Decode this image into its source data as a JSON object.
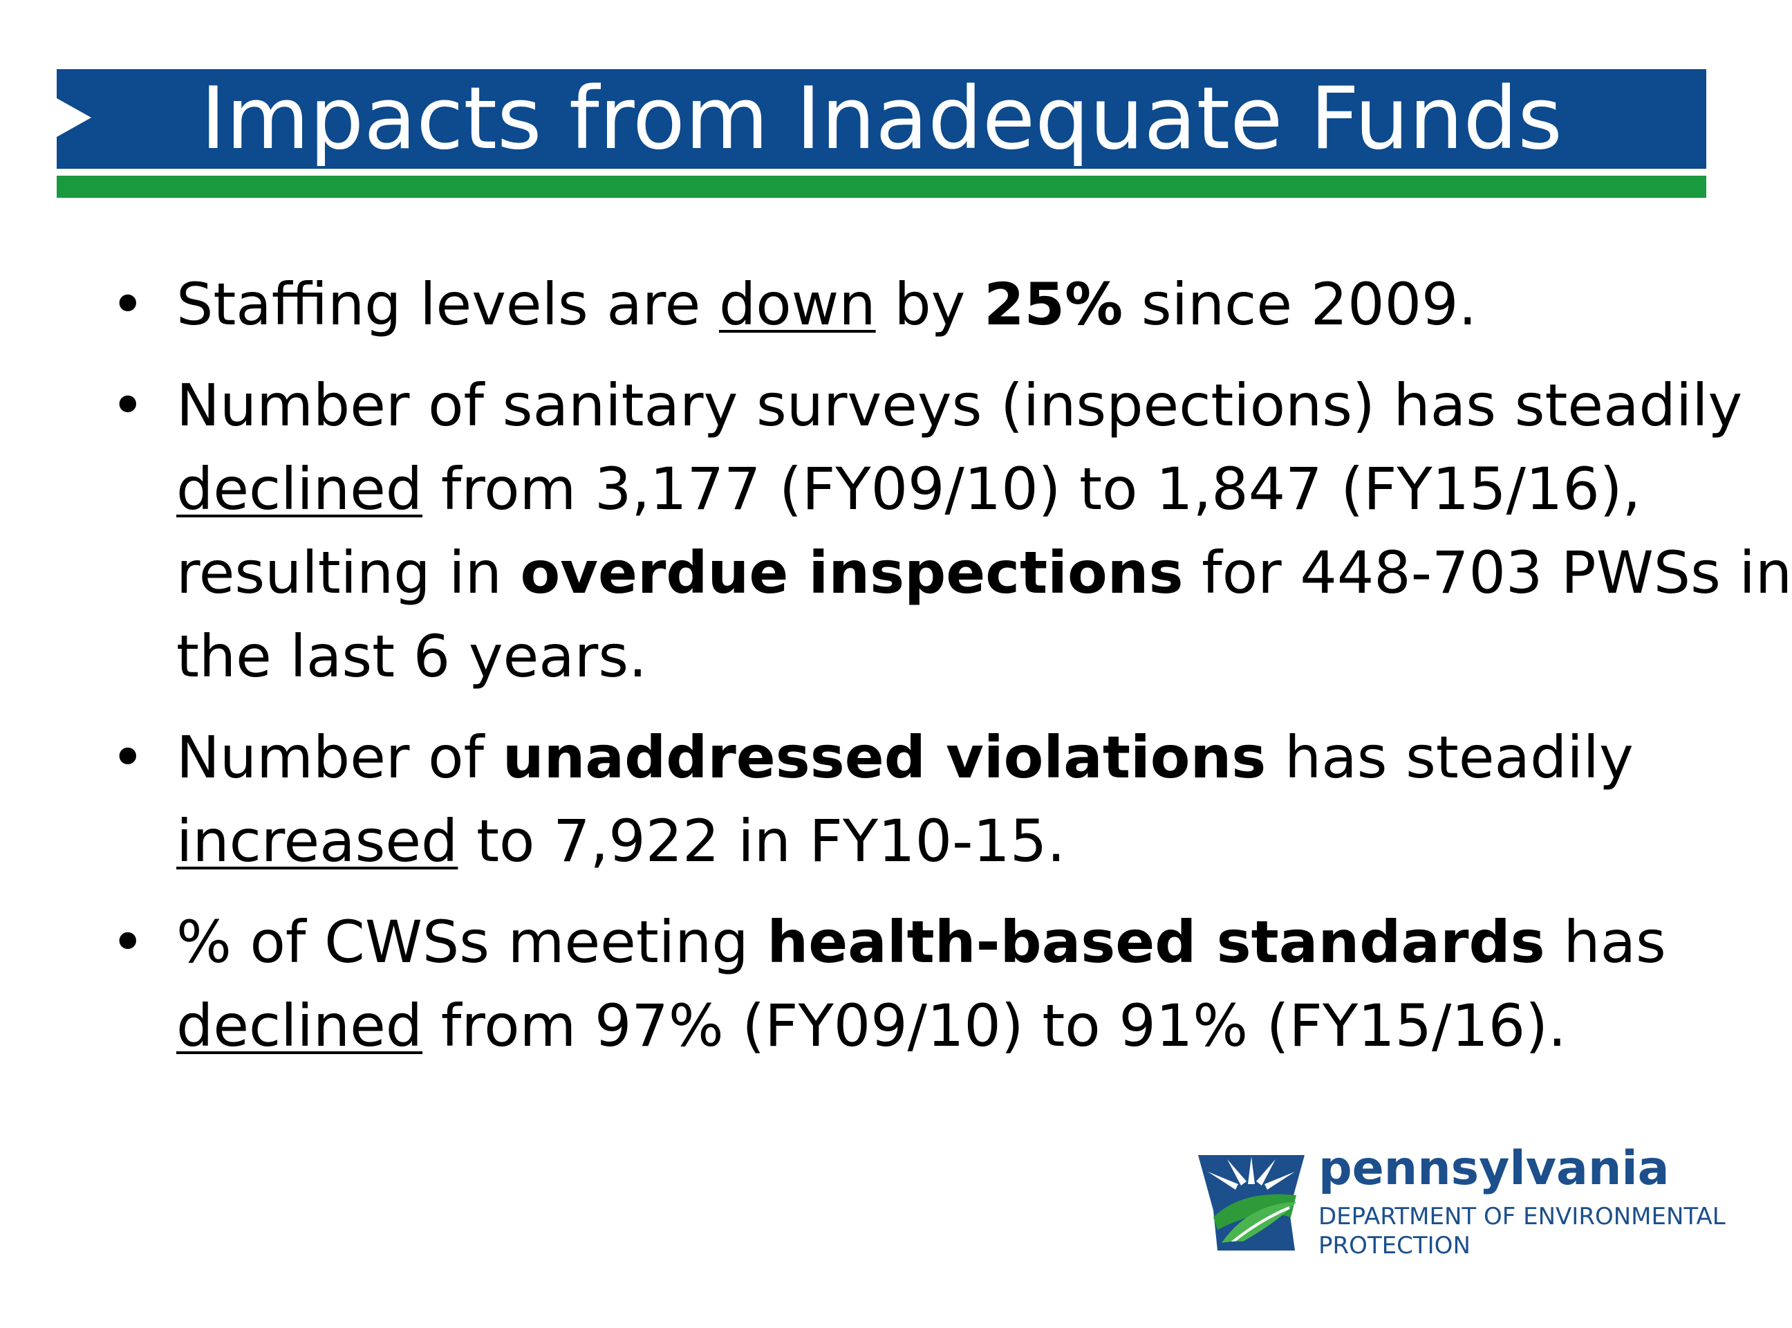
{
  "slide": {
    "title": "Impacts from Inadequate Funds",
    "bullets": [
      {
        "lines": [
          [
            {
              "text": "Staffing levels are ",
              "style": "normal"
            },
            {
              "text": "down",
              "style": "underline"
            },
            {
              "text": " by ",
              "style": "normal"
            },
            {
              "text": "25%",
              "style": "bold"
            },
            {
              "text": " since 2009.",
              "style": "normal"
            }
          ]
        ]
      },
      {
        "lines": [
          [
            {
              "text": "Number of sanitary surveys (inspections) has steadily",
              "style": "normal"
            }
          ],
          [
            {
              "text": "declined",
              "style": "underline"
            },
            {
              "text": " from 3,177 (FY09/10) to 1,847 (FY15/16),",
              "style": "normal"
            }
          ],
          [
            {
              "text": "resulting in ",
              "style": "normal"
            },
            {
              "text": "overdue inspections",
              "style": "bold"
            },
            {
              "text": " for 448-703 PWSs in",
              "style": "normal"
            }
          ],
          [
            {
              "text": "the last 6 years.",
              "style": "normal"
            }
          ]
        ]
      },
      {
        "lines": [
          [
            {
              "text": "Number of ",
              "style": "normal"
            },
            {
              "text": "unaddressed violations",
              "style": "bold"
            },
            {
              "text": " has steadily",
              "style": "normal"
            }
          ],
          [
            {
              "text": "increased",
              "style": "underline"
            },
            {
              "text": " to 7,922 in FY10-15.",
              "style": "normal"
            }
          ]
        ]
      },
      {
        "lines": [
          [
            {
              "text": "% of CWSs meeting ",
              "style": "normal"
            },
            {
              "text": "health-based standards",
              "style": "bold"
            },
            {
              "text": " has",
              "style": "normal"
            }
          ],
          [
            {
              "text": "declined",
              "style": "underline"
            },
            {
              "text": " from 97% (FY09/10) to 91% (FY15/16).",
              "style": "normal"
            }
          ]
        ]
      }
    ]
  },
  "logo": {
    "name": "pennsylvania",
    "department_line1": "DEPARTMENT OF ENVIRONMENTAL",
    "department_line2": "PROTECTION",
    "icon": "pa-keystone-leaf-logo",
    "colors": {
      "blue": "#1c4f8c",
      "green": "#2e9a3a"
    }
  },
  "colors": {
    "title_bar": "#0d4a8e",
    "title_underline": "#1a9a3e",
    "text": "#000000"
  }
}
